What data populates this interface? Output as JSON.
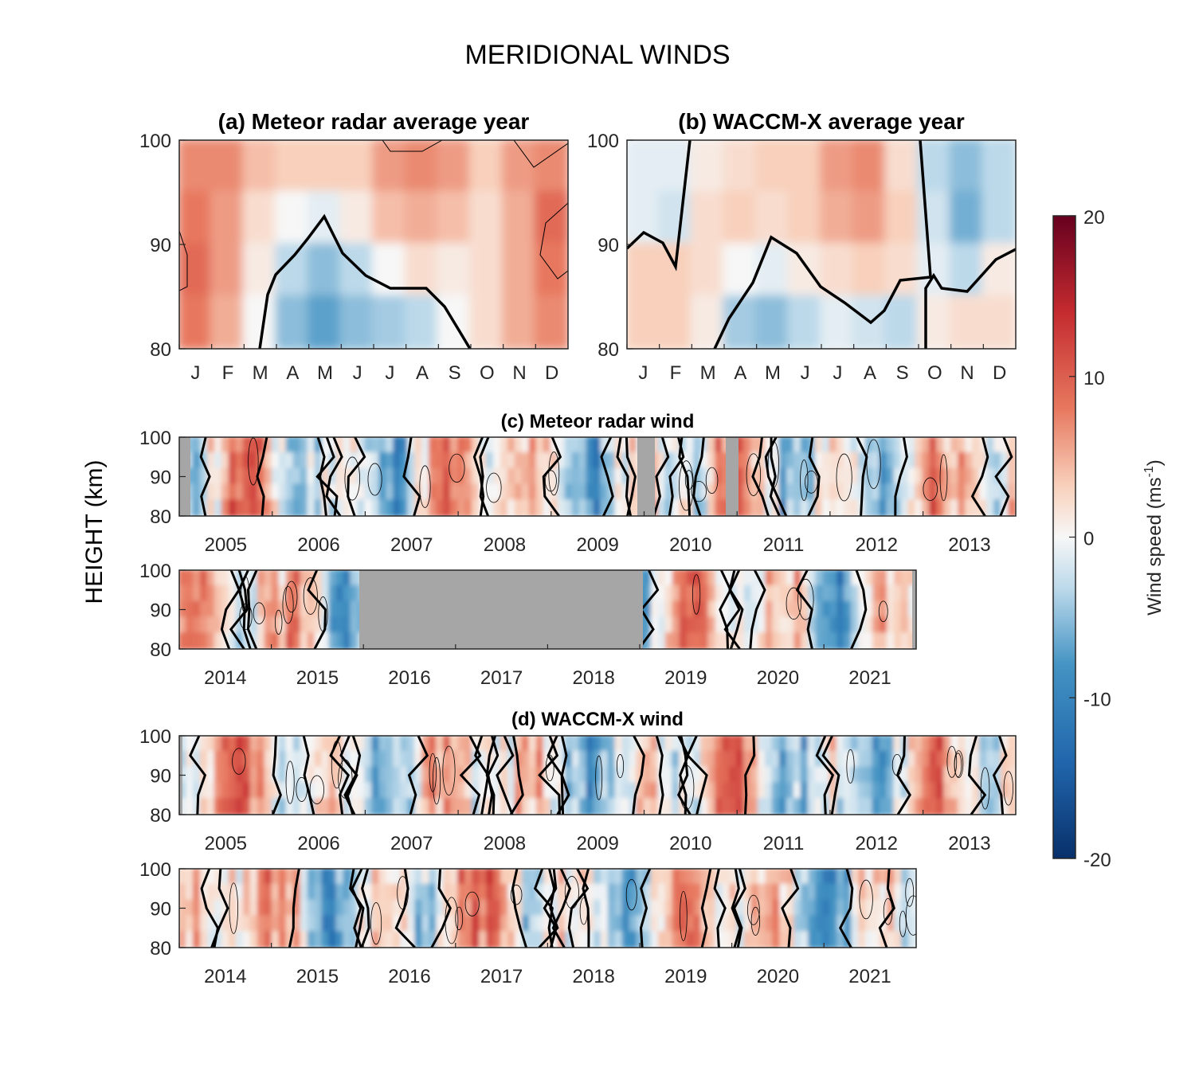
{
  "figure": {
    "title": "MERIDIONAL WINDS",
    "ylabel": "HEIGHT (km)"
  },
  "colorbar": {
    "label": "Wind speed (ms",
    "label_sup": "-1",
    "label_end": ")",
    "ticks": [
      "20",
      "10",
      "0",
      "-10",
      "-20"
    ],
    "range": [
      -20,
      20
    ],
    "colors": {
      "neg_max": "#08306b",
      "neg_mid": "#4393c3",
      "zero": "#f7f7f7",
      "pos_mid": "#e7785f",
      "pos_max": "#67001f",
      "gap": "#a6a6a6"
    }
  },
  "chart_data": [
    {
      "id": "a",
      "type": "heatmap",
      "title": "(a) Meteor radar average year",
      "x_tick_labels": [
        "J",
        "F",
        "M",
        "A",
        "M",
        "J",
        "J",
        "A",
        "S",
        "O",
        "N",
        "D"
      ],
      "y_tick_labels": [
        "100",
        "90",
        "80"
      ],
      "ylim": [
        80,
        100
      ],
      "zero_contour_height_km": [
        null,
        null,
        80,
        87,
        92.5,
        87,
        86,
        86,
        80,
        null,
        null,
        null
      ],
      "wind_ms": [
        [
          7,
          7,
          4,
          3,
          3,
          3,
          6,
          7,
          6,
          3,
          6,
          7
        ],
        [
          8,
          6,
          2,
          0,
          -1,
          1,
          4,
          5,
          4,
          2,
          5,
          9
        ],
        [
          9,
          6,
          1,
          -3,
          -5,
          -3,
          0,
          2,
          1,
          2,
          5,
          8
        ],
        [
          8,
          5,
          0,
          -5,
          -7,
          -5,
          -4,
          -3,
          0,
          2,
          5,
          7
        ]
      ]
    },
    {
      "id": "b",
      "type": "heatmap",
      "title": "(b) WACCM-X average year",
      "x_tick_labels": [
        "J",
        "F",
        "M",
        "A",
        "M",
        "J",
        "J",
        "A",
        "S",
        "O",
        "N",
        "D"
      ],
      "y_tick_labels": [
        "100",
        "90",
        "80"
      ],
      "ylim": [
        80,
        100
      ],
      "wind_ms": [
        [
          -1,
          -1,
          1,
          2,
          3,
          3,
          6,
          7,
          2,
          -3,
          -5,
          -3
        ],
        [
          -1,
          -2,
          2,
          3,
          2,
          3,
          5,
          6,
          3,
          -2,
          -6,
          -3
        ],
        [
          3,
          3,
          2,
          0,
          -1,
          1,
          2,
          3,
          2,
          -1,
          -3,
          1
        ],
        [
          3,
          3,
          1,
          -4,
          -5,
          -3,
          -1,
          -2,
          -3,
          1,
          2,
          2
        ]
      ]
    },
    {
      "id": "c1",
      "type": "heatmap",
      "title": "(c) Meteor radar wind",
      "x_tick_labels": [
        "2005",
        "2006",
        "2007",
        "2008",
        "2009",
        "2010",
        "2011",
        "2012",
        "2013"
      ],
      "y_tick_labels": [
        "100",
        "90",
        "80"
      ],
      "ylim": [
        80,
        100
      ],
      "no_data_years": [
        "2004 (Jan)",
        "2010 (Jan-Mar)",
        "2010 (Nov-Dec)"
      ]
    },
    {
      "id": "c2",
      "type": "heatmap",
      "x_tick_labels": [
        "2014",
        "2015",
        "2016",
        "2017",
        "2018",
        "2019",
        "2020",
        "2021"
      ],
      "y_tick_labels": [
        "100",
        "90",
        "80"
      ],
      "ylim": [
        80,
        100
      ],
      "no_data_period": "2016-2018"
    },
    {
      "id": "d1",
      "type": "heatmap",
      "title": "(d) WACCM-X wind",
      "x_tick_labels": [
        "2005",
        "2006",
        "2007",
        "2008",
        "2009",
        "2010",
        "2011",
        "2012",
        "2013"
      ],
      "y_tick_labels": [
        "100",
        "90",
        "80"
      ],
      "ylim": [
        80,
        100
      ]
    },
    {
      "id": "d2",
      "type": "heatmap",
      "x_tick_labels": [
        "2014",
        "2015",
        "2016",
        "2017",
        "2018",
        "2019",
        "2020",
        "2021"
      ],
      "y_tick_labels": [
        "100",
        "90",
        "80"
      ],
      "ylim": [
        80,
        100
      ]
    }
  ]
}
